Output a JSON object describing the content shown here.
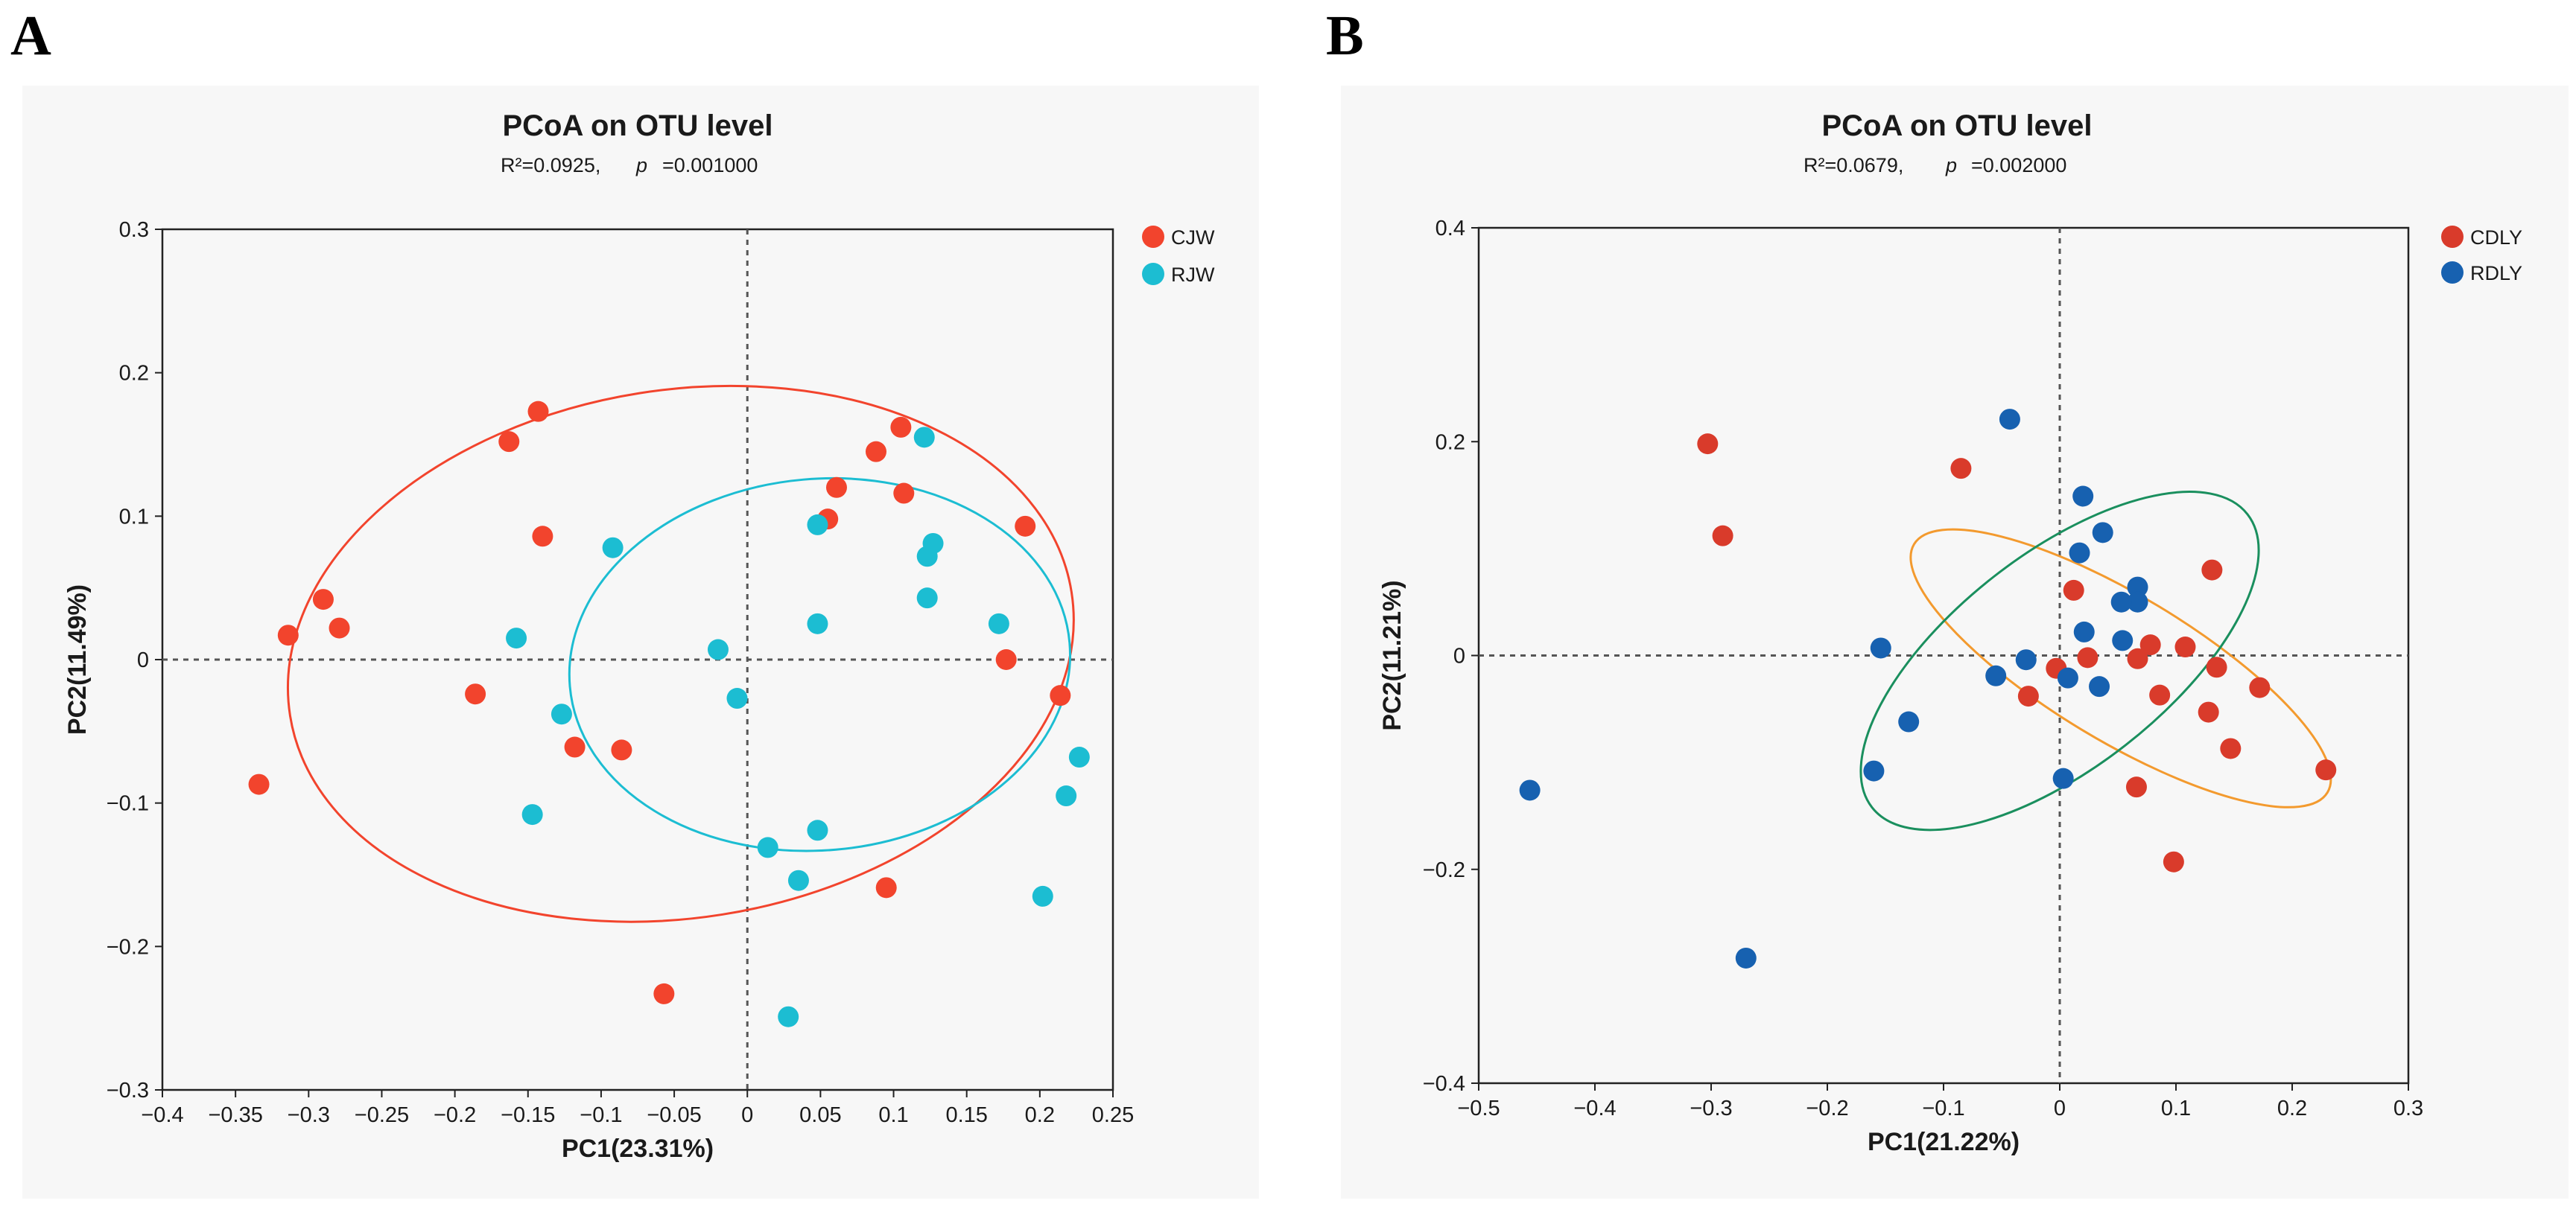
{
  "panels": [
    "A",
    "B"
  ],
  "chart_data": [
    {
      "type": "scatter",
      "panel": "A",
      "title": "PCoA on OTU level",
      "subtitle": {
        "r2": "R²=0.0925,",
        "p_label": "p",
        "p_value": "=0.001000"
      },
      "xlabel": "PC1(23.31%)",
      "ylabel": "PC2(11.49%)",
      "xlim": [
        -0.4,
        0.25
      ],
      "ylim": [
        -0.3,
        0.3
      ],
      "xticks": [
        -0.4,
        -0.35,
        -0.3,
        -0.25,
        -0.2,
        -0.15,
        -0.1,
        -0.05,
        0,
        0.05,
        0.1,
        0.15,
        0.2,
        0.25
      ],
      "xtick_labels": [
        "−0.4",
        "−0.35",
        "−0.3",
        "−0.25",
        "−0.2",
        "−0.15",
        "−0.1",
        "−0.05",
        "0",
        "0.05",
        "0.1",
        "0.15",
        "0.2",
        "0.25"
      ],
      "yticks": [
        -0.3,
        -0.2,
        -0.1,
        0,
        0.1,
        0.2,
        0.3
      ],
      "ytick_labels": [
        "−0.3",
        "−0.2",
        "−0.1",
        "0",
        "0.1",
        "0.2",
        "0.3"
      ],
      "series": [
        {
          "name": "CJW",
          "color": "#f2442d",
          "points": [
            [
              -0.143,
              0.173
            ],
            [
              -0.163,
              0.152
            ],
            [
              -0.14,
              0.086
            ],
            [
              -0.29,
              0.042
            ],
            [
              -0.314,
              0.017
            ],
            [
              -0.279,
              0.022
            ],
            [
              -0.186,
              -0.024
            ],
            [
              -0.118,
              -0.061
            ],
            [
              -0.086,
              -0.063
            ],
            [
              -0.334,
              -0.087
            ],
            [
              -0.057,
              -0.233
            ],
            [
              0.105,
              0.162
            ],
            [
              0.088,
              0.145
            ],
            [
              0.061,
              0.12
            ],
            [
              0.107,
              0.116
            ],
            [
              0.055,
              0.098
            ],
            [
              0.19,
              0.093
            ],
            [
              0.177,
              0.0
            ],
            [
              0.214,
              -0.025
            ],
            [
              0.095,
              -0.159
            ]
          ]
        },
        {
          "name": "RJW",
          "color": "#1cbdd2",
          "points": [
            [
              0.121,
              0.155
            ],
            [
              0.048,
              0.094
            ],
            [
              0.127,
              0.081
            ],
            [
              0.123,
              0.072
            ],
            [
              0.123,
              0.043
            ],
            [
              0.048,
              0.025
            ],
            [
              0.172,
              0.025
            ],
            [
              -0.092,
              0.078
            ],
            [
              -0.158,
              0.015
            ],
            [
              -0.02,
              0.007
            ],
            [
              -0.007,
              -0.027
            ],
            [
              -0.127,
              -0.038
            ],
            [
              -0.147,
              -0.108
            ],
            [
              0.014,
              -0.131
            ],
            [
              0.048,
              -0.119
            ],
            [
              0.035,
              -0.154
            ],
            [
              0.227,
              -0.068
            ],
            [
              0.218,
              -0.095
            ],
            [
              0.202,
              -0.165
            ],
            [
              0.028,
              -0.249
            ]
          ]
        }
      ],
      "ellipses": [
        {
          "series": "CJW",
          "color": "#f2442d",
          "center": [
            -0.0455,
            0.004
          ],
          "radii": [
            0.2705,
            0.184
          ],
          "angle_deg": 9
        },
        {
          "series": "RJW",
          "color": "#1cbdd2",
          "center": [
            0.0495,
            -0.0035
          ],
          "radii": [
            0.1715,
            0.1295
          ],
          "angle_deg": 5
        }
      ],
      "legend_position": "top-right",
      "reference_lines": {
        "x": 0,
        "y": 0
      }
    },
    {
      "type": "scatter",
      "panel": "B",
      "title": "PCoA on OTU level",
      "subtitle": {
        "r2": "R²=0.0679,",
        "p_label": "p",
        "p_value": "=0.002000"
      },
      "xlabel": "PC1(21.22%)",
      "ylabel": "PC2(11.21%)",
      "xlim": [
        -0.5,
        0.3
      ],
      "ylim": [
        -0.4,
        0.4
      ],
      "xticks": [
        -0.5,
        -0.4,
        -0.3,
        -0.2,
        -0.1,
        0,
        0.1,
        0.2,
        0.3
      ],
      "xtick_labels": [
        "−0.5",
        "−0.4",
        "−0.3",
        "−0.2",
        "−0.1",
        "0",
        "0.1",
        "0.2",
        "0.3"
      ],
      "yticks": [
        -0.4,
        -0.2,
        0,
        0.2,
        0.4
      ],
      "ytick_labels": [
        "−0.4",
        "−0.2",
        "0",
        "0.2",
        "0.4"
      ],
      "series": [
        {
          "name": "CDLY",
          "color": "#d93b2b",
          "points": [
            [
              -0.303,
              0.198
            ],
            [
              -0.29,
              0.112
            ],
            [
              -0.085,
              0.175
            ],
            [
              0.012,
              0.061
            ],
            [
              0.131,
              0.08
            ],
            [
              0.078,
              0.01
            ],
            [
              0.108,
              0.008
            ],
            [
              0.024,
              -0.002
            ],
            [
              0.067,
              -0.003
            ],
            [
              0.135,
              -0.011
            ],
            [
              -0.003,
              -0.012
            ],
            [
              -0.027,
              -0.038
            ],
            [
              0.086,
              -0.037
            ],
            [
              0.172,
              -0.03
            ],
            [
              0.128,
              -0.053
            ],
            [
              0.147,
              -0.087
            ],
            [
              0.229,
              -0.107
            ],
            [
              0.066,
              -0.123
            ],
            [
              0.098,
              -0.193
            ]
          ]
        },
        {
          "name": "RDLY",
          "color": "#1761b0",
          "points": [
            [
              -0.043,
              0.221
            ],
            [
              0.02,
              0.149
            ],
            [
              0.037,
              0.115
            ],
            [
              0.017,
              0.096
            ],
            [
              0.067,
              0.064
            ],
            [
              0.067,
              0.05
            ],
            [
              0.053,
              0.05
            ],
            [
              0.054,
              0.014
            ],
            [
              0.021,
              0.022
            ],
            [
              -0.154,
              0.007
            ],
            [
              -0.029,
              -0.004
            ],
            [
              -0.055,
              -0.019
            ],
            [
              0.007,
              -0.021
            ],
            [
              0.034,
              -0.029
            ],
            [
              -0.13,
              -0.062
            ],
            [
              -0.16,
              -0.108
            ],
            [
              0.003,
              -0.115
            ],
            [
              -0.456,
              -0.126
            ],
            [
              -0.27,
              -0.283
            ]
          ]
        }
      ],
      "ellipses": [
        {
          "series": "CDLY",
          "color": "#f39a2e",
          "center": [
            0.0525,
            -0.012
          ],
          "radii": [
            0.2075,
            0.068
          ],
          "angle_deg": -31
        },
        {
          "series": "RDLY",
          "color": "#1a8f5e",
          "center": [
            0.0,
            -0.005
          ],
          "radii": [
            0.205,
            0.1
          ],
          "angle_deg": 38
        }
      ],
      "legend_position": "top-right",
      "reference_lines": {
        "x": 0,
        "y": 0
      }
    }
  ]
}
